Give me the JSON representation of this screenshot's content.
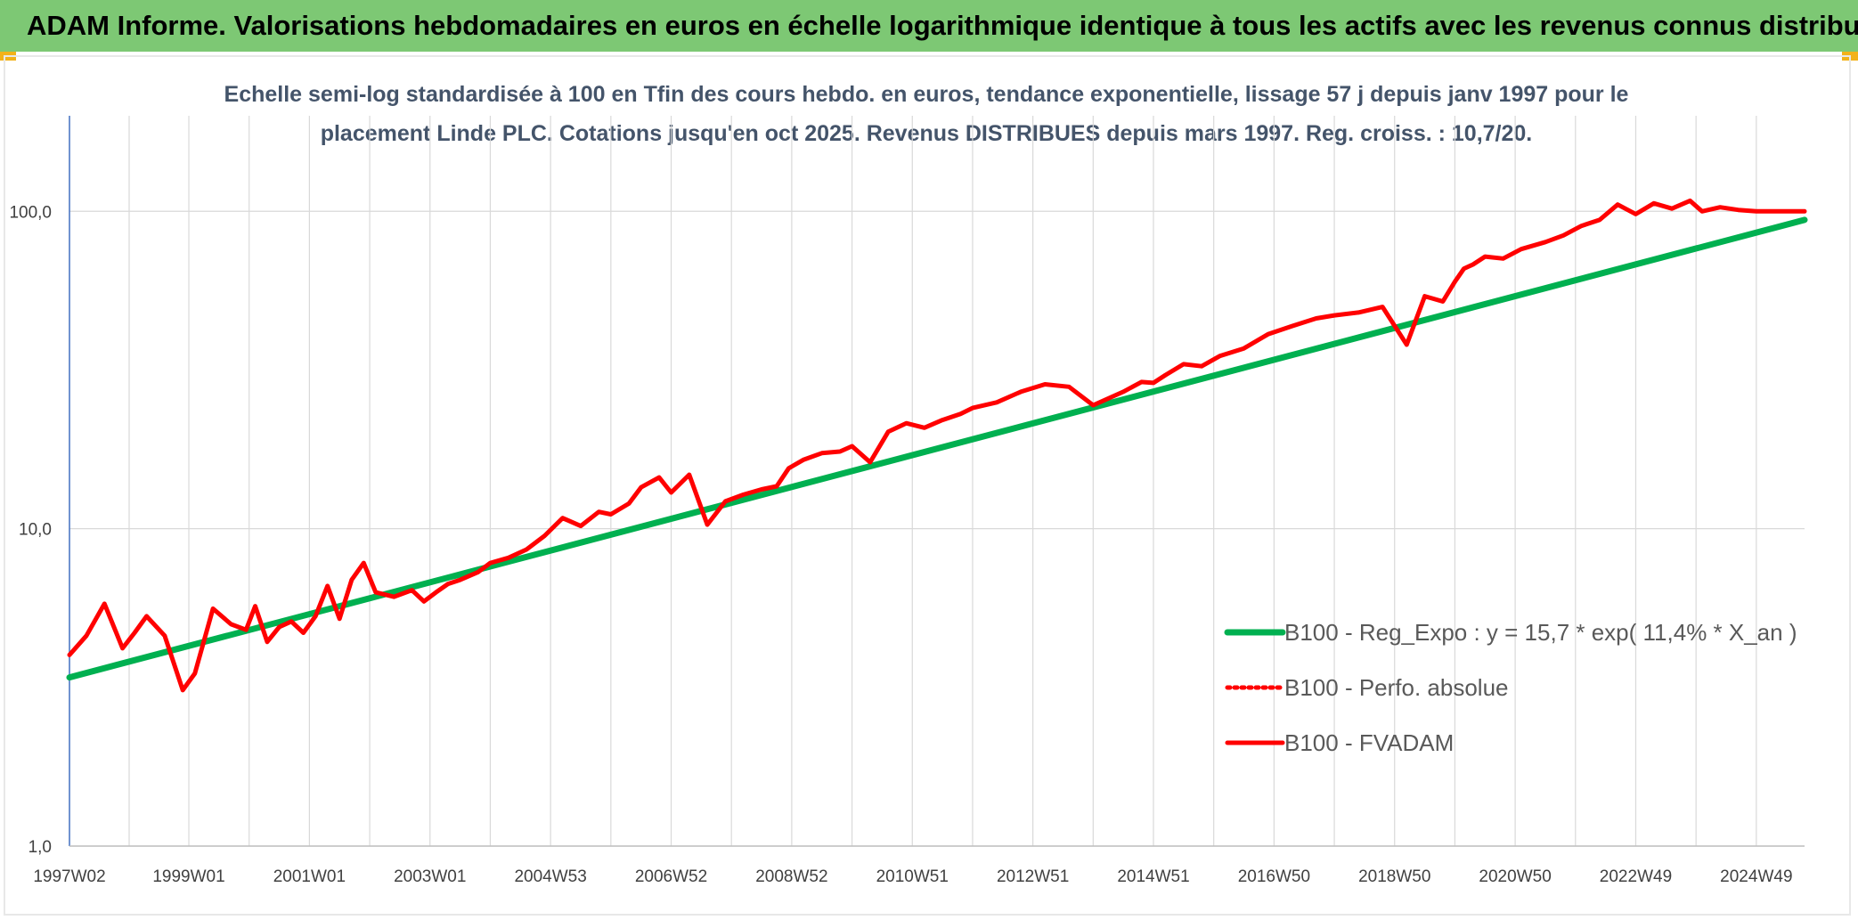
{
  "header": {
    "title": "ADAM Informe. Valorisations hebdomadaires en euros en échelle logarithmique identique à tous les actifs avec les revenus connus distribués"
  },
  "colors": {
    "banner": "#7dc874",
    "accent_corner": "#f2b21a",
    "regression": "#00b050",
    "fvadam": "#ff0000",
    "perfo": "#ff0000",
    "grid": "#d9d9d9",
    "subtitle": "#44546a"
  },
  "chart_data": {
    "type": "line",
    "title": "Echelle semi-log standardisée à 100 en Tfin des cours hebdo. en euros, tendance exponentielle, lissage 57 j depuis janv 1997 pour le placement Linde PLC. Cotations jusqu'en oct 2025. Revenus DISTRIBUES depuis mars 1997. Reg. croiss. : 10,7/20.",
    "title_lines": [
      "Echelle semi-log standardisée à 100 en Tfin des cours hebdo. en euros, tendance exponentielle, lissage 57 j depuis janv 1997 pour le",
      "placement Linde PLC. Cotations jusqu'en oct 2025. Revenus DISTRIBUES depuis mars 1997. Reg. croiss. : 10,7/20."
    ],
    "y_scale": "log",
    "ylim": [
      1,
      200
    ],
    "y_ticks": [
      {
        "value": 1,
        "label": "1,0"
      },
      {
        "value": 10,
        "label": "10,0"
      },
      {
        "value": 100,
        "label": "100,0"
      }
    ],
    "x_ticks": [
      {
        "year": 1997.02,
        "label": "1997W02"
      },
      {
        "year": 1999.0,
        "label": "1999W01"
      },
      {
        "year": 2001.0,
        "label": "2001W01"
      },
      {
        "year": 2003.0,
        "label": "2003W01"
      },
      {
        "year": 2005.0,
        "label": "2004W53"
      },
      {
        "year": 2007.0,
        "label": "2006W52"
      },
      {
        "year": 2009.0,
        "label": "2008W52"
      },
      {
        "year": 2011.0,
        "label": "2010W51"
      },
      {
        "year": 2013.0,
        "label": "2012W51"
      },
      {
        "year": 2015.0,
        "label": "2014W51"
      },
      {
        "year": 2017.0,
        "label": "2016W50"
      },
      {
        "year": 2019.0,
        "label": "2018W50"
      },
      {
        "year": 2021.0,
        "label": "2020W50"
      },
      {
        "year": 2023.0,
        "label": "2022W49"
      },
      {
        "year": 2025.0,
        "label": "2024W49"
      }
    ],
    "xlim": [
      1997.02,
      2025.8
    ],
    "grid": true,
    "legend_position": "bottom-right",
    "series": [
      {
        "name": "B100 - Reg_Expo : y = 15,7 * exp( 11,4% *  X_an )",
        "style": "solid-thick",
        "color": "#00b050",
        "x": [
          1997.02,
          2025.8
        ],
        "y": [
          3.4,
          94
        ]
      },
      {
        "name": "B100 - Perfo. absolue",
        "style": "dotted",
        "color": "#ff0000",
        "x": [],
        "y": []
      },
      {
        "name": "B100 - FVADAM",
        "style": "solid",
        "color": "#ff0000",
        "x": [
          1997.02,
          1997.3,
          1997.6,
          1997.9,
          1998.1,
          1998.3,
          1998.6,
          1998.9,
          1999.1,
          1999.4,
          1999.7,
          1999.95,
          2000.1,
          2000.3,
          2000.5,
          2000.7,
          2000.9,
          2001.1,
          2001.3,
          2001.5,
          2001.7,
          2001.9,
          2002.1,
          2002.4,
          2002.7,
          2002.9,
          2003.1,
          2003.3,
          2003.5,
          2003.8,
          2004.0,
          2004.3,
          2004.6,
          2004.9,
          2005.2,
          2005.5,
          2005.8,
          2006.0,
          2006.3,
          2006.5,
          2006.8,
          2007.0,
          2007.3,
          2007.6,
          2007.9,
          2008.2,
          2008.5,
          2008.75,
          2008.95,
          2009.2,
          2009.5,
          2009.8,
          2010.0,
          2010.3,
          2010.6,
          2010.9,
          2011.2,
          2011.5,
          2011.8,
          2012.0,
          2012.4,
          2012.8,
          2013.2,
          2013.6,
          2014.0,
          2014.5,
          2014.8,
          2015.0,
          2015.2,
          2015.5,
          2015.8,
          2016.1,
          2016.5,
          2016.9,
          2017.3,
          2017.7,
          2018.0,
          2018.4,
          2018.8,
          2019.2,
          2019.5,
          2019.8,
          2020.0,
          2020.15,
          2020.3,
          2020.5,
          2020.8,
          2021.1,
          2021.5,
          2021.8,
          2022.1,
          2022.4,
          2022.7,
          2023.0,
          2023.3,
          2023.6,
          2023.9,
          2024.1,
          2024.4,
          2024.7,
          2025.0,
          2025.2,
          2025.5,
          2025.8
        ],
        "y": [
          4.0,
          4.6,
          5.8,
          4.2,
          4.7,
          5.3,
          4.6,
          3.1,
          3.5,
          5.6,
          5.0,
          4.8,
          5.7,
          4.4,
          4.9,
          5.1,
          4.7,
          5.3,
          6.6,
          5.2,
          6.9,
          7.8,
          6.3,
          6.1,
          6.4,
          5.9,
          6.3,
          6.7,
          6.9,
          7.3,
          7.8,
          8.1,
          8.6,
          9.5,
          10.8,
          10.2,
          11.3,
          11.1,
          12.0,
          13.5,
          14.5,
          13.0,
          14.8,
          10.3,
          12.2,
          12.8,
          13.3,
          13.6,
          15.5,
          16.5,
          17.3,
          17.5,
          18.2,
          16.2,
          20.2,
          21.5,
          20.8,
          22.0,
          23.0,
          24.0,
          25.0,
          27.0,
          28.5,
          28.0,
          24.5,
          27.0,
          29.0,
          28.8,
          30.5,
          33.0,
          32.5,
          35.0,
          37.0,
          41.0,
          43.5,
          46.0,
          47.0,
          48.0,
          50.0,
          38.0,
          54.0,
          52.0,
          60.0,
          66.0,
          68.0,
          72.0,
          71.0,
          76.0,
          80.0,
          84.0,
          90.0,
          94.0,
          105.0,
          98.0,
          106.0,
          102.0,
          108.0,
          100.0,
          103.0,
          101.0,
          100.0,
          100.0,
          100.0,
          100.0
        ]
      }
    ]
  }
}
